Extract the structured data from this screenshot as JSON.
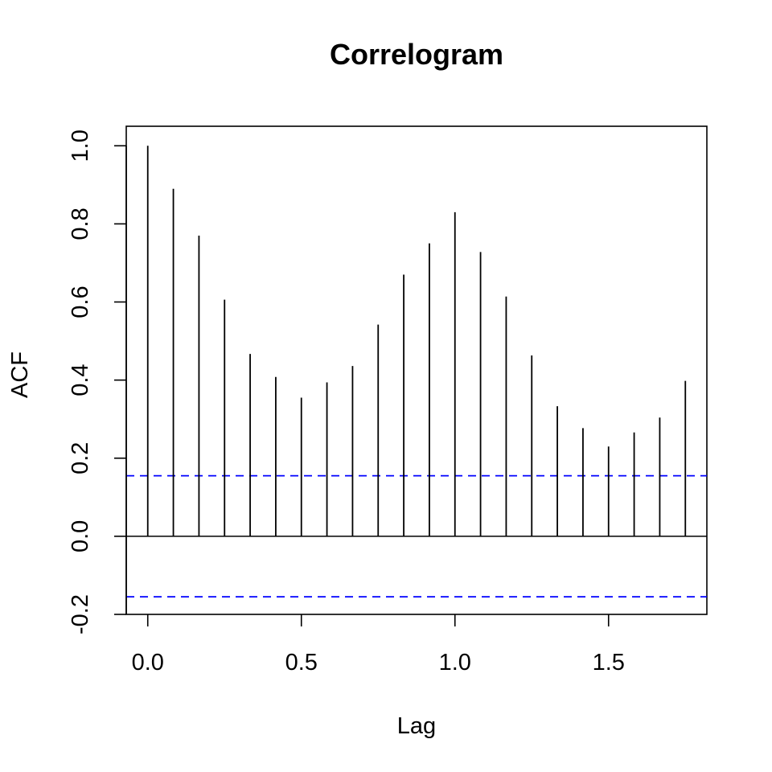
{
  "chart_data": {
    "type": "bar",
    "title": "Correlogram",
    "xlabel": "Lag",
    "ylabel": "ACF",
    "xlim": [
      -0.07,
      1.82
    ],
    "ylim": [
      -0.2,
      1.05
    ],
    "x_ticks": [
      "0.0",
      "0.5",
      "1.0",
      "1.5"
    ],
    "y_ticks": [
      "-0.2",
      "0.0",
      "0.2",
      "0.4",
      "0.6",
      "0.8",
      "1.0"
    ],
    "lags": [
      0,
      0.0833,
      0.1667,
      0.25,
      0.3333,
      0.4167,
      0.5,
      0.5833,
      0.6667,
      0.75,
      0.8333,
      0.9167,
      1.0,
      1.0833,
      1.1667,
      1.25,
      1.3333,
      1.4167,
      1.5,
      1.5833,
      1.6667,
      1.75
    ],
    "acf": [
      1.0,
      0.89,
      0.77,
      0.606,
      0.467,
      0.408,
      0.355,
      0.394,
      0.436,
      0.542,
      0.67,
      0.75,
      0.83,
      0.728,
      0.614,
      0.463,
      0.333,
      0.277,
      0.23,
      0.266,
      0.304,
      0.398
    ],
    "confidence_bounds": [
      0.155,
      -0.155
    ],
    "confidence_color": "#0000ff",
    "bar_color": "#000000",
    "grid": false,
    "legend": "none"
  }
}
